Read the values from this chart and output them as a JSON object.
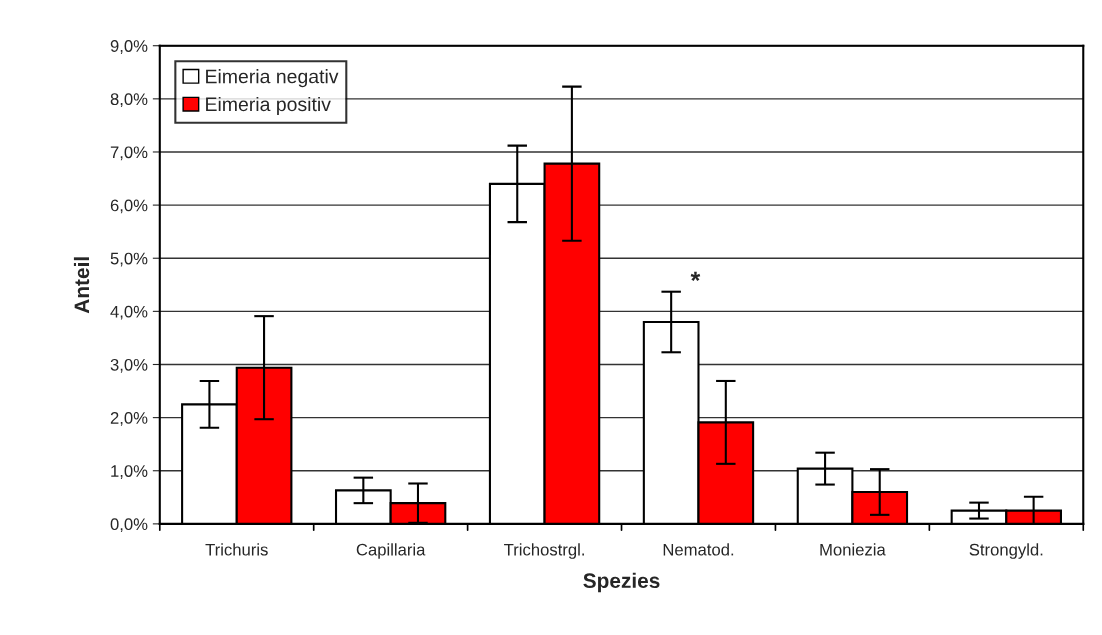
{
  "chart_data": {
    "type": "bar",
    "xlabel": "Spezies",
    "ylabel": "Anteil",
    "categories": [
      "Trichuris",
      "Capillaria",
      "Trichostrgl.",
      "Nematod.",
      "Moniezia",
      "Strongyld."
    ],
    "series": [
      {
        "name": "Eimeria negativ",
        "color": "#ffffff",
        "values": [
          2.25,
          0.63,
          6.4,
          3.8,
          1.04,
          0.25
        ],
        "errors": [
          0.44,
          0.24,
          0.72,
          0.57,
          0.3,
          0.15
        ]
      },
      {
        "name": "Eimeria positiv",
        "color": "#ff0000",
        "values": [
          2.94,
          0.39,
          6.78,
          1.91,
          0.6,
          0.25
        ],
        "errors": [
          0.97,
          0.37,
          1.45,
          0.78,
          0.43,
          0.26
        ]
      }
    ],
    "ylim": [
      0,
      9
    ],
    "yticks": [
      {
        "value": 0,
        "label": "0,0%"
      },
      {
        "value": 1,
        "label": "1,0%"
      },
      {
        "value": 2,
        "label": "2,0%"
      },
      {
        "value": 3,
        "label": "3,0%"
      },
      {
        "value": 4,
        "label": "4,0%"
      },
      {
        "value": 5,
        "label": "5,0%"
      },
      {
        "value": 6,
        "label": "6,0%"
      },
      {
        "value": 7,
        "label": "7,0%"
      },
      {
        "value": 8,
        "label": "8,0%"
      },
      {
        "value": 9,
        "label": "9,0%"
      }
    ],
    "grid": "y",
    "legend": "top left",
    "annotations": [
      "*"
    ]
  }
}
